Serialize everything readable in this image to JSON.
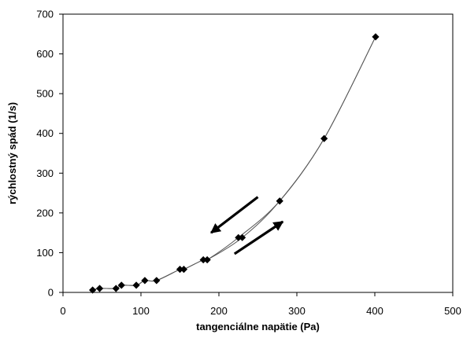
{
  "chart_data": {
    "type": "line",
    "title": "",
    "xlabel": "tangenciálne napätie (Pa)",
    "ylabel": "rýchlostný spád (1/s)",
    "xlim": [
      0,
      500
    ],
    "ylim": [
      0,
      700
    ],
    "x_ticks": [
      0,
      100,
      200,
      300,
      400,
      500
    ],
    "y_ticks": [
      0,
      100,
      200,
      300,
      400,
      500,
      600,
      700
    ],
    "grid": false,
    "legend": "none",
    "series": [
      {
        "color": "#000000",
        "marker": "diamond",
        "x": [
          38,
          47,
          68,
          75,
          94,
          105,
          120,
          150,
          155,
          180,
          185,
          230,
          278,
          335,
          401
        ],
        "y": [
          6,
          10,
          10,
          18,
          18,
          30,
          30,
          58,
          58,
          82,
          82,
          138,
          230,
          387,
          643
        ]
      },
      {
        "color": "#000000",
        "marker": "diamond",
        "x": [
          401,
          335,
          278,
          225,
          185,
          180,
          155,
          150,
          120,
          105,
          94,
          75,
          68,
          47,
          38
        ],
        "y": [
          643,
          387,
          230,
          138,
          82,
          82,
          58,
          58,
          30,
          30,
          18,
          18,
          10,
          10,
          6
        ]
      }
    ],
    "annotations": [
      {
        "type": "arrow",
        "direction": "down-left",
        "from": [
          250,
          240
        ],
        "to": [
          190,
          150
        ]
      },
      {
        "type": "arrow",
        "direction": "up-right",
        "from": [
          220,
          97
        ],
        "to": [
          282,
          178
        ]
      }
    ]
  }
}
